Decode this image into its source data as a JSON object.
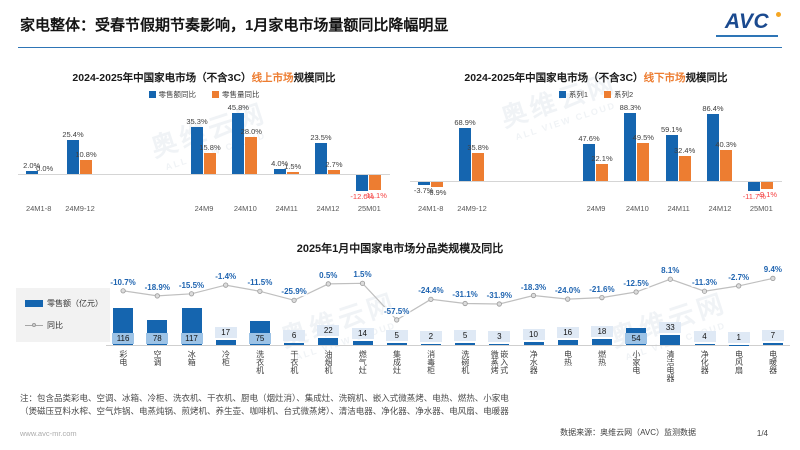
{
  "header": {
    "title": "家电整体：受春节假期节奏影响，1月家电市场量额同比降幅明显",
    "logo": "AVC"
  },
  "colors": {
    "bar_blue": "#1565AF",
    "bar_orange": "#ED7D31",
    "negative_red": "#F53F3F",
    "line_gray": "#BFBFBF",
    "accent_rule_blue": "#2E75B6",
    "pct_label_blue": "#1F64B0",
    "value_box_inside": "#9DC3E6",
    "value_box_above": "#DFE9F5"
  },
  "watermark": {
    "cn": "奥维云网",
    "en": "ALL VIEW CLOUD"
  },
  "chart_data": [
    {
      "type": "bar",
      "title": "2024-2025年中国家电市场（不含3C）线上市场规模同比",
      "title_parts": {
        "main": "2024-2025年中国家电市场（不含3C）",
        "highlight": "线上市场",
        "tail": "规模同比"
      },
      "legend": [
        "零售额同比",
        "零售量同比"
      ],
      "legend_position": "top",
      "unit": "%",
      "categories": [
        "24M1-8",
        "24M9-12",
        "24M9",
        "24M10",
        "24M11",
        "24M12",
        "25M01"
      ],
      "gap_after_index": 1,
      "red_label_index": 6,
      "series": [
        {
          "name": "零售额同比",
          "values": [
            2.0,
            25.4,
            35.3,
            45.8,
            4.0,
            23.5,
            -12.0
          ]
        },
        {
          "name": "零售量同比",
          "values": [
            0.0,
            10.8,
            15.8,
            28.0,
            1.5,
            2.7,
            -11.1
          ]
        }
      ],
      "labels": [
        [
          "2.0%",
          "25.4%",
          "35.3%",
          "45.8%",
          "4.0%",
          "23.5%",
          "-12.0%"
        ],
        [
          "0.0%",
          "10.8%",
          "15.8%",
          "28.0%",
          "1.5%",
          "2.7%",
          "-11.1%"
        ]
      ]
    },
    {
      "type": "bar",
      "title": "2024-2025年中国家电市场（不含3C）线下市场规模同比",
      "title_parts": {
        "main": "2024-2025年中国家电市场（不含3C）",
        "highlight": "线下市场",
        "tail": "规模同比"
      },
      "legend": [
        "系列1",
        "系列2"
      ],
      "legend_position": "top",
      "unit": "%",
      "categories": [
        "24M1-8",
        "24M9-12",
        "24M9",
        "24M10",
        "24M11",
        "24M12",
        "25M01"
      ],
      "gap_after_index": 1,
      "red_label_index": 6,
      "series": [
        {
          "name": "系列1",
          "values": [
            -3.7,
            68.9,
            47.6,
            88.3,
            59.1,
            86.4,
            -11.7
          ]
        },
        {
          "name": "系列2",
          "values": [
            -6.9,
            35.8,
            22.1,
            49.5,
            32.4,
            40.3,
            -9.1
          ]
        }
      ],
      "labels": [
        [
          "-3.7%",
          "68.9%",
          "47.6%",
          "88.3%",
          "59.1%",
          "86.4%",
          "-11.7%"
        ],
        [
          "-6.9%",
          "35.8%",
          "22.1%",
          "49.5%",
          "32.4%",
          "40.3%",
          "-9.1%"
        ]
      ]
    },
    {
      "type": "bar",
      "title": "2025年1月中国家电市场分品类规模及同比",
      "legend": [
        "零售额（亿元）",
        "同比"
      ],
      "legend_position": "left",
      "categories": [
        "彩电",
        "空调",
        "冰箱",
        "冷柜",
        "洗衣机",
        "干衣机",
        "油烟机",
        "燃气灶",
        "集成灶",
        "消毒柜",
        "洗碗机",
        "嵌入式\n微蒸烤",
        "净水器",
        "电热",
        "燃热",
        "小家电",
        "清洁电器",
        "净化器",
        "电风扇",
        "电暖器"
      ],
      "series": [
        {
          "name": "零售额（亿元）",
          "type": "bar",
          "values": [
            116,
            78,
            117,
            17,
            75,
            6,
            22,
            14,
            5,
            2,
            5,
            3,
            10,
            16,
            18,
            54,
            33,
            4,
            1,
            7
          ]
        },
        {
          "name": "同比",
          "type": "line",
          "values": [
            -10.7,
            -18.9,
            -15.5,
            -1.4,
            -11.5,
            -25.9,
            0.5,
            1.5,
            -57.5,
            -24.4,
            -31.1,
            -31.9,
            -18.3,
            -24.0,
            -21.6,
            -12.5,
            8.1,
            -11.3,
            -2.7,
            9.4
          ],
          "labels": [
            "-10.7%",
            "-18.9%",
            "-15.5%",
            "-1.4%",
            "-11.5%",
            "-25.9%",
            "0.5%",
            "1.5%",
            "-57.5%",
            "-24.4%",
            "-31.1%",
            "-31.9%",
            "-18.3%",
            "-24.0%",
            "-21.6%",
            "-12.5%",
            "8.1%",
            "-11.3%",
            "-2.7%",
            "9.4%"
          ]
        }
      ]
    }
  ],
  "notes": {
    "line1": "注：包含品类彩电、空调、冰箱、冷柜、洗衣机、干衣机、厨电（烟灶消）、集成灶、洗碗机、嵌入式微蒸烤、电热、燃热、小家电",
    "line2": "（煲磁压豆料水榨、空气炸锅、电蒸炖锅、煎烤机、养生壶、咖啡机、台式微蒸烤）、清洁电器、净化器、净水器、电风扇、电暖器"
  },
  "footer": {
    "url": "www.avc-mr.com",
    "source": "数据来源：奥维云网（AVC）监测数据",
    "page": "1/4"
  }
}
